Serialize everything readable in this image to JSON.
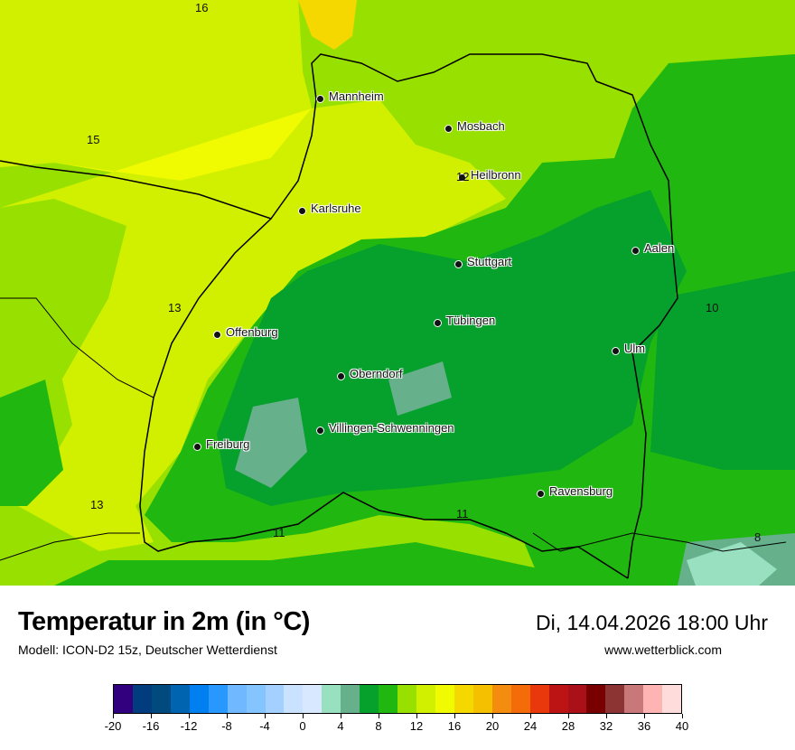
{
  "header": {
    "title": "Temperatur in 2m (in °C)",
    "subtitle": "Modell: ICON-D2 15z, Deutscher Wetterdienst",
    "datetime": "Di, 14.04.2026 18:00 Uhr",
    "website": "www.wetterblick.com"
  },
  "map": {
    "cities": [
      {
        "name": "Mannheim"
      },
      {
        "name": "Mosbach"
      },
      {
        "name": "Heilbronn"
      },
      {
        "name": "Karlsruhe"
      },
      {
        "name": "Aalen"
      },
      {
        "name": "Stuttgart"
      },
      {
        "name": "Tübingen"
      },
      {
        "name": "Offenburg"
      },
      {
        "name": "Ulm"
      },
      {
        "name": "Oberndorf"
      },
      {
        "name": "Villingen-Schwenningen"
      },
      {
        "name": "Freiburg"
      },
      {
        "name": "Ravensburg"
      }
    ],
    "temperature_labels": [
      "16",
      "15",
      "12",
      "13",
      "10",
      "13",
      "11",
      "11",
      "8"
    ]
  },
  "legend": {
    "unit": "°C",
    "min": -20,
    "max": 40,
    "step": 2,
    "tick_labels": [
      "-20",
      "-16",
      "-12",
      "-8",
      "-4",
      "0",
      "4",
      "8",
      "12",
      "16",
      "20",
      "24",
      "28",
      "32",
      "36",
      "40"
    ],
    "colors": [
      "#32007e",
      "#003c7e",
      "#004a7e",
      "#0064b0",
      "#0080f0",
      "#2898ff",
      "#70b8ff",
      "#84c4ff",
      "#a4d0ff",
      "#c8e2ff",
      "#d8e8ff",
      "#98e0c0",
      "#66b08c",
      "#06a02c",
      "#20b810",
      "#98e000",
      "#d0f000",
      "#f0fa00",
      "#f4d800",
      "#f4c000",
      "#f48c10",
      "#f46c0a",
      "#e8380c",
      "#bc1414",
      "#aa1018",
      "#780000",
      "#8c3434",
      "#c87878",
      "#ffb4b4",
      "#ffdcdc"
    ]
  }
}
